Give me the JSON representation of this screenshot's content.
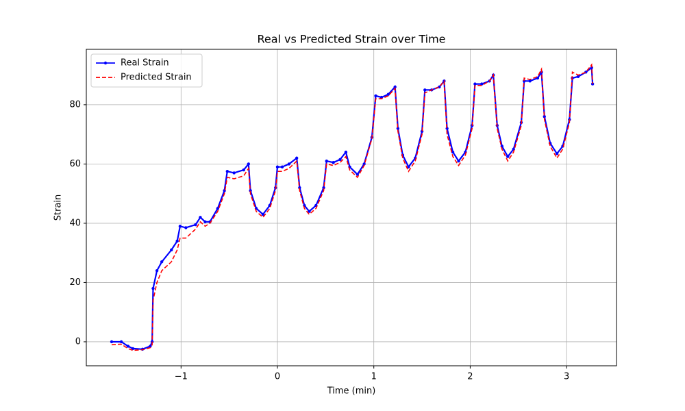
{
  "chart_data": {
    "type": "line",
    "title": "Real vs Predicted Strain over Time",
    "x_label": "Time (min)",
    "y_label": "Strain",
    "x": [
      -1.72,
      -1.62,
      -1.55,
      -1.5,
      -1.4,
      -1.32,
      -1.3,
      -1.29,
      -1.25,
      -1.2,
      -1.1,
      -1.04,
      -1.01,
      -0.95,
      -0.85,
      -0.8,
      -0.75,
      -0.7,
      -0.62,
      -0.55,
      -0.52,
      -0.45,
      -0.35,
      -0.3,
      -0.28,
      -0.22,
      -0.15,
      -0.08,
      -0.02,
      0,
      0.05,
      0.12,
      0.2,
      0.23,
      0.28,
      0.33,
      0.4,
      0.48,
      0.51,
      0.58,
      0.65,
      0.71,
      0.75,
      0.83,
      0.9,
      0.98,
      1.02,
      1.08,
      1.15,
      1.22,
      1.25,
      1.3,
      1.36,
      1.43,
      1.5,
      1.53,
      1.6,
      1.68,
      1.73,
      1.76,
      1.82,
      1.88,
      1.95,
      2.02,
      2.05,
      2.12,
      2.2,
      2.24,
      2.28,
      2.33,
      2.39,
      2.45,
      2.53,
      2.56,
      2.62,
      2.7,
      2.74,
      2.77,
      2.83,
      2.9,
      2.96,
      3.03,
      3.06,
      3.12,
      3.2,
      3.26,
      3.27
    ],
    "series": [
      {
        "name": "Real Strain",
        "color": "#0000ff",
        "linestyle": "solid",
        "marker": "o",
        "values": [
          0,
          0,
          -1.5,
          -2.3,
          -2.5,
          -1.5,
          0,
          18,
          24,
          27,
          31,
          34,
          39,
          38.5,
          39.5,
          42,
          40.5,
          40.5,
          45,
          51,
          57.5,
          57,
          58,
          60,
          51,
          45,
          43,
          46,
          52,
          59,
          59,
          60,
          62,
          52,
          46,
          44,
          46,
          52,
          61,
          60.5,
          61.5,
          64,
          59,
          56.5,
          60,
          69,
          83,
          82.5,
          83.5,
          86,
          72,
          63,
          59,
          62,
          71,
          85,
          85,
          86,
          88,
          72,
          64,
          61,
          64,
          73,
          87,
          87,
          88,
          90,
          73,
          66,
          62.5,
          65,
          74,
          88,
          88,
          89,
          91,
          76,
          67,
          63.5,
          66,
          75,
          89,
          89.5,
          91,
          92.5,
          87
        ]
      },
      {
        "name": "Predicted Strain",
        "color": "#ff0000",
        "linestyle": "dashed",
        "marker": "none",
        "values": [
          -1,
          -0.8,
          -2.3,
          -2.9,
          -2.7,
          -2,
          -1,
          14,
          20,
          24,
          27,
          31,
          35,
          35,
          38,
          40.5,
          39,
          40,
          44,
          50,
          55.5,
          55,
          56,
          58.5,
          50,
          44,
          42,
          45,
          51,
          57.5,
          57.5,
          58.5,
          61,
          51,
          45,
          43,
          45,
          51,
          60,
          59.5,
          60.5,
          62.5,
          58,
          55.5,
          59.5,
          68.5,
          82,
          82,
          83,
          85.5,
          71,
          62,
          57.5,
          61,
          70,
          84,
          85,
          86,
          88,
          70,
          62.5,
          59.5,
          63,
          72,
          86.5,
          86.5,
          88,
          90,
          72,
          65,
          61,
          64,
          73,
          89,
          88.5,
          89.5,
          92,
          75,
          66,
          62,
          65,
          74,
          91,
          90,
          91,
          93.5,
          87
        ]
      }
    ],
    "xlim": [
      -1.983,
      3.518
    ],
    "ylim": [
      -8.1,
      98.7
    ],
    "xticks": [
      {
        "value": -1,
        "label": "−1"
      },
      0,
      1,
      2,
      3
    ],
    "yticks": [
      0,
      20,
      40,
      60,
      80
    ],
    "grid": true,
    "legend_loc": "upper left"
  }
}
